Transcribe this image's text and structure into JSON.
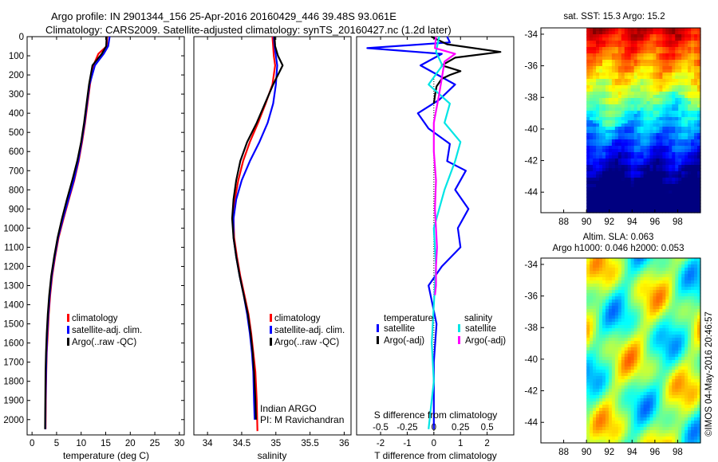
{
  "header": {
    "line1": "Argo profile: IN 2901344_156 25-Apr-2016 20160429_446 39.48S 93.061E",
    "line2": "Climatology: CARS2009. Satellite-adjusted climatology: synTS_20160427.nc (1.2d later)"
  },
  "credit": "Indian ARGO",
  "pi": "PI: M Ravichandran",
  "timestamp": "©IMOS 04-May-2016 20:46:57",
  "colors": {
    "climatology": "#ff0000",
    "satellite": "#0000ff",
    "argo": "#000000",
    "satellite_s": "#00e5e5",
    "argo_s": "#ff00ff"
  },
  "chart_data": [
    {
      "type": "line",
      "name": "temperature-panel",
      "xlabel": "temperature (deg C)",
      "xlim": [
        -1,
        31
      ],
      "ylim": [
        2080,
        0
      ],
      "xticks": [
        0,
        5,
        10,
        15,
        20,
        25,
        30
      ],
      "yticks": [
        0,
        100,
        200,
        300,
        400,
        500,
        600,
        700,
        800,
        900,
        1000,
        1100,
        1200,
        1300,
        1400,
        1500,
        1600,
        1700,
        1800,
        1900,
        2000
      ],
      "legend": [
        "climatology",
        "satellite-adj. clim.",
        "Argo(..raw -QC)"
      ],
      "series": [
        {
          "name": "climatology",
          "color": "#ff0000",
          "x": [
            15.3,
            15.2,
            13.5,
            12.5,
            11.8,
            11.3,
            10.8,
            10.2,
            9.5,
            8.6,
            7.5,
            6.4,
            5.4,
            4.7,
            4.1,
            3.7,
            3.4,
            3.2,
            3.0,
            2.9,
            2.8,
            2.75
          ],
          "y": [
            0,
            50,
            90,
            150,
            250,
            350,
            450,
            550,
            650,
            750,
            850,
            950,
            1050,
            1150,
            1250,
            1350,
            1450,
            1550,
            1650,
            1750,
            1900,
            2050
          ]
        },
        {
          "name": "satellite-adj. clim.",
          "color": "#0000ff",
          "x": [
            15.8,
            15.5,
            14.6,
            12.8,
            11.7,
            11.2,
            10.7,
            10.1,
            9.4,
            8.5,
            7.4,
            6.3,
            5.3,
            4.6,
            4.0,
            3.6,
            3.3,
            3.1,
            2.95,
            2.85,
            2.75,
            2.7
          ],
          "y": [
            0,
            50,
            90,
            150,
            250,
            350,
            450,
            550,
            650,
            750,
            850,
            950,
            1050,
            1150,
            1250,
            1350,
            1450,
            1550,
            1650,
            1750,
            1900,
            2050
          ]
        },
        {
          "name": "Argo(..raw -QC)",
          "color": "#000000",
          "x": [
            15.2,
            15.1,
            14.2,
            12.3,
            11.6,
            11.1,
            10.6,
            10.0,
            9.2,
            8.2,
            7.1,
            6.1,
            5.2,
            4.5,
            3.9,
            3.5,
            3.2,
            3.0,
            2.85,
            2.75,
            2.7,
            2.65
          ],
          "y": [
            0,
            50,
            90,
            150,
            250,
            350,
            450,
            550,
            650,
            750,
            850,
            950,
            1050,
            1150,
            1250,
            1350,
            1450,
            1550,
            1650,
            1750,
            1900,
            2050
          ]
        }
      ]
    },
    {
      "type": "line",
      "name": "salinity-panel",
      "xlabel": "salinity",
      "xlim": [
        33.8,
        36.1
      ],
      "ylim": [
        2080,
        0
      ],
      "xticks": [
        34,
        34.5,
        35,
        35.5,
        36
      ],
      "xticklabels": [
        "34",
        "34.5",
        "35",
        "35.5",
        "36"
      ],
      "legend": [
        "climatology",
        "satellite-adj. clim.",
        "Argo(..raw -QC)"
      ],
      "series": [
        {
          "name": "climatology",
          "color": "#ff0000",
          "x": [
            34.95,
            34.96,
            34.97,
            34.99,
            34.95,
            34.85,
            34.74,
            34.62,
            34.52,
            34.45,
            34.4,
            34.38,
            34.39,
            34.43,
            34.48,
            34.54,
            34.6,
            34.64,
            34.67,
            34.7,
            34.72,
            34.73
          ],
          "y": [
            0,
            50,
            100,
            150,
            250,
            350,
            450,
            550,
            650,
            750,
            850,
            950,
            1050,
            1150,
            1250,
            1350,
            1450,
            1550,
            1650,
            1750,
            1900,
            2060
          ]
        },
        {
          "name": "satellite-adj. clim.",
          "color": "#0000ff",
          "x": [
            34.97,
            34.98,
            35.0,
            35.02,
            35.0,
            34.96,
            34.88,
            34.76,
            34.62,
            34.5,
            34.42,
            34.38,
            34.38,
            34.42,
            34.47,
            34.53,
            34.58,
            34.62,
            34.65,
            34.67,
            34.68,
            34.69
          ],
          "y": [
            0,
            50,
            100,
            150,
            250,
            350,
            450,
            550,
            650,
            750,
            850,
            950,
            1050,
            1150,
            1250,
            1350,
            1450,
            1550,
            1650,
            1750,
            1900,
            2000
          ]
        },
        {
          "name": "Argo(..raw -QC)",
          "color": "#000000",
          "x": [
            34.98,
            34.99,
            35.03,
            35.1,
            34.96,
            34.84,
            34.72,
            34.58,
            34.48,
            34.42,
            34.38,
            34.36,
            34.38,
            34.42,
            34.47,
            34.53,
            34.59,
            34.63,
            34.66,
            34.68,
            34.7,
            34.71
          ],
          "y": [
            0,
            50,
            100,
            150,
            250,
            350,
            450,
            550,
            650,
            750,
            850,
            950,
            1050,
            1150,
            1250,
            1350,
            1450,
            1550,
            1650,
            1750,
            1900,
            2000
          ]
        }
      ]
    },
    {
      "type": "line",
      "name": "difference-panel",
      "xlabel": "T difference from climatology",
      "top_label": "S difference from climatology",
      "xlim": [
        -2.9,
        3.0
      ],
      "ylim": [
        2080,
        0
      ],
      "xticks": [
        -2,
        -1,
        0,
        1,
        2
      ],
      "xticks_s": [
        -0.5,
        -0.25,
        0,
        0.25,
        0.5
      ],
      "xticklabels_s": [
        "-0.5",
        "-0.25",
        "0",
        "0.25",
        "0.5"
      ],
      "legend_title_t": "temperature",
      "legend_title_s": "salinity",
      "legend_t": [
        "satellite",
        "Argo(-adj)"
      ],
      "legend_s": [
        "satellite",
        "Argo(-adj)"
      ],
      "series": [
        {
          "name": "T satellite",
          "color": "#0000ff",
          "x": [
            0.5,
            0.6,
            -2.5,
            0.3,
            -0.5,
            0.8,
            0.2,
            -0.6,
            -0.2,
            0.6,
            0.5,
            1.2,
            0.8,
            1.3,
            0.9,
            1.0,
            0.3,
            -0.2,
            0.1,
            0.0,
            0.0
          ],
          "y": [
            0,
            30,
            60,
            90,
            150,
            250,
            330,
            400,
            480,
            560,
            650,
            700,
            800,
            900,
            1000,
            1100,
            1200,
            1300,
            1500,
            1700,
            2050
          ]
        },
        {
          "name": "T Argo(-adj)",
          "color": "#000000",
          "x": [
            -0.1,
            0.5,
            2.5,
            0.8,
            0.3,
            1.0,
            0.6,
            0.3,
            0.1,
            0.05,
            0.0
          ],
          "y": [
            0,
            40,
            80,
            110,
            150,
            180,
            200,
            220,
            260,
            300,
            350
          ]
        },
        {
          "name": "S satellite",
          "color": "#00e5e5",
          "x": [
            0.05,
            0.02,
            0.08,
            -0.05,
            0.15,
            0.1,
            0.25,
            0.2,
            0.1,
            0.05,
            0.0,
            0.02,
            0.0,
            -0.02,
            0.0,
            -0.03,
            -0.05
          ],
          "y": [
            0,
            80,
            150,
            250,
            350,
            450,
            550,
            650,
            800,
            900,
            1000,
            1200,
            1400,
            1600,
            1800,
            1950,
            2050
          ]
        },
        {
          "name": "S Argo(-adj)",
          "color": "#ff00ff",
          "x": [
            0.02,
            0.01,
            0.2,
            0.1,
            0.08,
            0.05,
            0.0,
            0.0,
            0.02,
            0.01,
            0.02,
            0.03,
            0.02,
            0.02,
            0.01
          ],
          "y": [
            0,
            60,
            90,
            130,
            200,
            300,
            450,
            600,
            750,
            900,
            1000,
            1100,
            1200,
            1300,
            1350
          ]
        }
      ]
    }
  ],
  "maps": {
    "sst": {
      "title": "sat. SST: 15.3 Argo: 15.2",
      "xticks": [
        88,
        90,
        92,
        94,
        96,
        98
      ],
      "yticks": [
        -34,
        -36,
        -38,
        -40,
        -42,
        -44
      ],
      "lon_range": [
        86,
        100
      ],
      "lat_range": [
        -45.3,
        -33.6
      ],
      "data_lon_start": 90
    },
    "sla": {
      "title1": "Altim. SLA: 0.063",
      "title2": "Argo h1000: 0.046 h2000: 0.053",
      "xticks": [
        88,
        90,
        92,
        94,
        96,
        98
      ],
      "yticks": [
        -34,
        -36,
        -38,
        -40,
        -42,
        -44
      ],
      "lon_range": [
        86,
        100
      ],
      "lat_range": [
        -45.3,
        -33.6
      ],
      "data_lon_start": 90
    }
  }
}
